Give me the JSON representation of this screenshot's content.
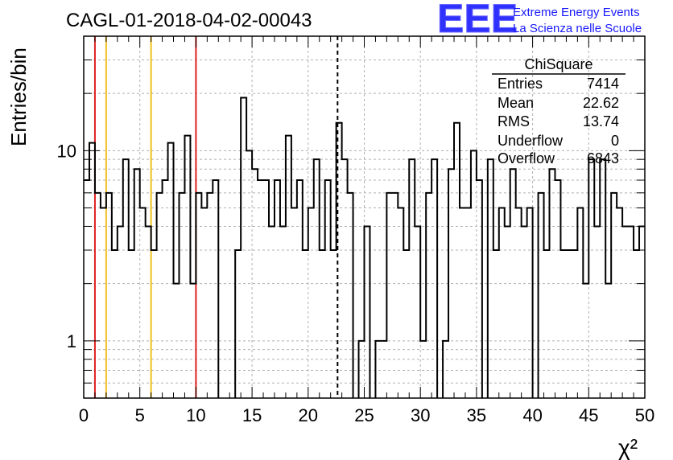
{
  "chart_data": {
    "type": "bar",
    "title": "CAGL-01-2018-04-02-00043",
    "xlabel": "χ²",
    "ylabel": "Entries/bin",
    "xlim": [
      0,
      50
    ],
    "ylim": [
      0.5,
      40
    ],
    "yscale": "log",
    "grid": true,
    "bin_width": 0.5,
    "xticks": [
      "0",
      "5",
      "10",
      "15",
      "20",
      "25",
      "30",
      "35",
      "40",
      "45",
      "50"
    ],
    "yticks": [
      "1",
      "10"
    ],
    "values": [
      7,
      11,
      6,
      5,
      6,
      3,
      4,
      9,
      3,
      8,
      5,
      4,
      3,
      6,
      7,
      11,
      2,
      6,
      12,
      2,
      6,
      5,
      6,
      7,
      0,
      0,
      0,
      3,
      19,
      10,
      8,
      7,
      7,
      4,
      7,
      4,
      12,
      5,
      7,
      3,
      5,
      9,
      3,
      7,
      3,
      14,
      9,
      6,
      0,
      1,
      4,
      0,
      1,
      1,
      6,
      6,
      5,
      3,
      9,
      4,
      1,
      6,
      9,
      0,
      1,
      8,
      14,
      5,
      5,
      10,
      7,
      0,
      9,
      3,
      5,
      4,
      8,
      5,
      4,
      5,
      0,
      6,
      3,
      8,
      7,
      3,
      3,
      3,
      5,
      2,
      9,
      4,
      9,
      2,
      6,
      5,
      4,
      4,
      3,
      4
    ],
    "reference_lines": [
      {
        "x": 1,
        "color": "#e02020"
      },
      {
        "x": 2,
        "color": "#f0c020"
      },
      {
        "x": 6,
        "color": "#f0c020"
      },
      {
        "x": 10,
        "color": "#e02020"
      }
    ],
    "mean_line": {
      "x": 22.62,
      "style": "dashed",
      "color": "#000000"
    },
    "legend_placement": "top-right"
  },
  "stats_box": {
    "title": "ChiSquare",
    "rows": [
      {
        "label": "Entries",
        "value": "7414"
      },
      {
        "label": "Mean",
        "value": "22.62"
      },
      {
        "label": "RMS",
        "value": "13.74"
      },
      {
        "label": "Underflow",
        "value": "0"
      },
      {
        "label": "Overflow",
        "value": "6843"
      }
    ]
  },
  "logo": {
    "mark": "EEE",
    "line1": "Extreme Energy Events",
    "line2": "La Scienza nelle Scuole",
    "color": "#1a1aff"
  }
}
